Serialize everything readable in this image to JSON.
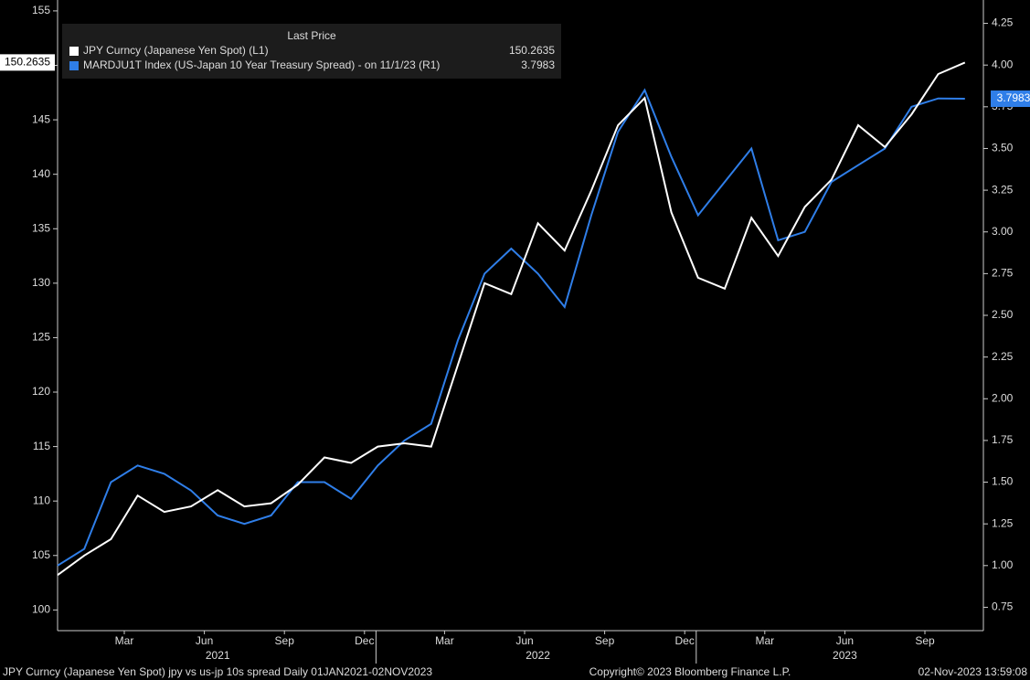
{
  "chart_data": {
    "type": "line",
    "legend_title": "Last Price",
    "x": [
      "2021-01",
      "2021-02",
      "2021-03",
      "2021-04",
      "2021-05",
      "2021-06",
      "2021-07",
      "2021-08",
      "2021-09",
      "2021-10",
      "2021-11",
      "2021-12",
      "2022-01",
      "2022-02",
      "2022-03",
      "2022-04",
      "2022-05",
      "2022-06",
      "2022-07",
      "2022-08",
      "2022-09",
      "2022-10",
      "2022-11",
      "2022-12",
      "2023-01",
      "2023-02",
      "2023-03",
      "2023-04",
      "2023-05",
      "2023-06",
      "2023-07",
      "2023-08",
      "2023-09",
      "2023-10",
      "2023-11"
    ],
    "xticks": [
      {
        "value": "2021-03",
        "label": "Mar"
      },
      {
        "value": "2021-06",
        "label": "Jun"
      },
      {
        "value": "2021-09",
        "label": "Sep"
      },
      {
        "value": "2021-12",
        "label": "Dec"
      },
      {
        "value": "2022-03",
        "label": "Mar"
      },
      {
        "value": "2022-06",
        "label": "Jun"
      },
      {
        "value": "2022-09",
        "label": "Sep"
      },
      {
        "value": "2022-12",
        "label": "Dec"
      },
      {
        "value": "2023-03",
        "label": "Mar"
      },
      {
        "value": "2023-06",
        "label": "Jun"
      },
      {
        "value": "2023-09",
        "label": "Sep"
      }
    ],
    "years": [
      "2021",
      "2022",
      "2023"
    ],
    "ylim": [
      98.1,
      156
    ],
    "yticks": [
      100,
      105,
      110,
      115,
      120,
      125,
      130,
      135,
      140,
      145,
      150,
      155
    ],
    "y2lim": [
      0.61,
      4.39
    ],
    "y2ticks": [
      {
        "value": 0.75,
        "label": "0.75"
      },
      {
        "value": 1,
        "label": "1.00"
      },
      {
        "value": 1.25,
        "label": "1.25"
      },
      {
        "value": 1.5,
        "label": "1.50"
      },
      {
        "value": 1.75,
        "label": "1.75"
      },
      {
        "value": 2,
        "label": "2.00"
      },
      {
        "value": 2.25,
        "label": "2.25"
      },
      {
        "value": 2.5,
        "label": "2.50"
      },
      {
        "value": 2.75,
        "label": "2.75"
      },
      {
        "value": 3,
        "label": "3.00"
      },
      {
        "value": 3.25,
        "label": "3.25"
      },
      {
        "value": 3.5,
        "label": "3.50"
      },
      {
        "value": 3.75,
        "label": "3.75"
      },
      {
        "value": 4,
        "label": "4.00"
      },
      {
        "value": 4.25,
        "label": "4.25"
      }
    ],
    "series": [
      {
        "name": "JPY Curncy (Japanese Yen Spot)  (L1)",
        "color": "#ffffff",
        "axis": "y",
        "values": [
          103.2,
          105.0,
          106.5,
          110.5,
          109.0,
          109.5,
          111.0,
          109.5,
          109.8,
          111.5,
          114.0,
          113.5,
          115.0,
          115.3,
          115.0,
          122.5,
          130.0,
          129.0,
          135.5,
          133.0,
          138.5,
          144.5,
          147.0,
          136.5,
          130.5,
          129.5,
          136.0,
          132.5,
          137.0,
          139.5,
          144.5,
          142.5,
          145.5,
          149.2,
          150.2635
        ]
      },
      {
        "name": "MARDJU1T Index (US-Japan 10 Year Treasury Spread) -  on 11/1/23  (R1)",
        "color": "#2f7ee8",
        "axis": "y2",
        "values": [
          1.0,
          1.1,
          1.5,
          1.6,
          1.55,
          1.45,
          1.3,
          1.25,
          1.3,
          1.5,
          1.5,
          1.4,
          1.6,
          1.75,
          1.85,
          2.35,
          2.75,
          2.9,
          2.75,
          2.55,
          3.1,
          3.6,
          3.85,
          3.45,
          3.1,
          3.3,
          3.5,
          2.95,
          3.0,
          3.3,
          3.4,
          3.5,
          3.75,
          3.8,
          3.7983
        ]
      }
    ],
    "footer": [
      "JPY Curncy (Japanese Yen Spot) jpy vs us-jp 10s spread  Daily 01JAN2021-02NOV2023",
      "Copyright© 2023 Bloomberg Finance L.P.",
      "02-Nov-2023 13:59:08"
    ]
  }
}
